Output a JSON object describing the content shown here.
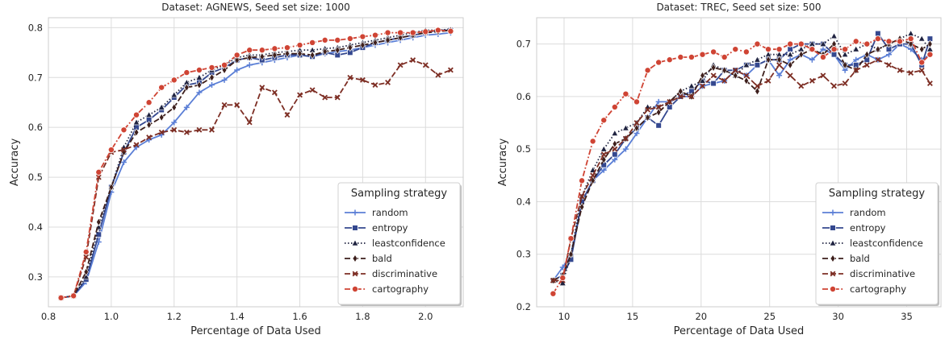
{
  "chart_data": [
    {
      "type": "line",
      "title": "Dataset: AGNEWS, Seed set size: 1000",
      "xlabel": "Percentage of Data Used",
      "ylabel": "Accuracy",
      "xlim": [
        0.8,
        2.12
      ],
      "ylim": [
        0.24,
        0.82
      ],
      "xticks": [
        0.8,
        1.0,
        1.2,
        1.4,
        1.6,
        1.8,
        2.0
      ],
      "xtick_labels": [
        "0.8",
        "1.0",
        "1.2",
        "1.4",
        "1.6",
        "1.8",
        "2.0"
      ],
      "yticks": [
        0.3,
        0.4,
        0.5,
        0.6,
        0.7,
        0.8
      ],
      "ytick_labels": [
        "0.3",
        "0.4",
        "0.5",
        "0.6",
        "0.7",
        "0.8"
      ],
      "grid": true,
      "legend": {
        "title": "Sampling strategy",
        "position": "bottom-right"
      },
      "series": [
        {
          "name": "random",
          "color": "#5b7fd6",
          "dash": "solid",
          "marker": "plus",
          "x": [
            0.84,
            0.88,
            0.92,
            0.96,
            1.0,
            1.04,
            1.08,
            1.12,
            1.16,
            1.2,
            1.24,
            1.28,
            1.32,
            1.36,
            1.4,
            1.44,
            1.48,
            1.52,
            1.56,
            1.6,
            1.64,
            1.68,
            1.72,
            1.76,
            1.8,
            1.84,
            1.88,
            1.92,
            1.96,
            2.0,
            2.04,
            2.08
          ],
          "y": [
            0.258,
            0.262,
            0.29,
            0.37,
            0.47,
            0.53,
            0.56,
            0.575,
            0.585,
            0.61,
            0.64,
            0.67,
            0.685,
            0.695,
            0.715,
            0.725,
            0.73,
            0.735,
            0.74,
            0.745,
            0.742,
            0.748,
            0.752,
            0.755,
            0.76,
            0.765,
            0.77,
            0.775,
            0.78,
            0.785,
            0.787,
            0.79
          ]
        },
        {
          "name": "entropy",
          "color": "#34488f",
          "dash": "solid",
          "marker": "square",
          "x": [
            0.84,
            0.88,
            0.92,
            0.96,
            1.0,
            1.04,
            1.08,
            1.12,
            1.16,
            1.2,
            1.24,
            1.28,
            1.32,
            1.36,
            1.4,
            1.44,
            1.48,
            1.52,
            1.56,
            1.6,
            1.64,
            1.68,
            1.72,
            1.76,
            1.8,
            1.84,
            1.88,
            1.92,
            1.96,
            2.0,
            2.04,
            2.08
          ],
          "y": [
            0.258,
            0.262,
            0.295,
            0.385,
            0.48,
            0.55,
            0.6,
            0.615,
            0.635,
            0.66,
            0.685,
            0.69,
            0.71,
            0.72,
            0.735,
            0.74,
            0.735,
            0.74,
            0.745,
            0.745,
            0.742,
            0.75,
            0.745,
            0.75,
            0.76,
            0.77,
            0.775,
            0.78,
            0.785,
            0.79,
            0.795,
            0.795
          ]
        },
        {
          "name": "leastconfidence",
          "color": "#1f2340",
          "dash": "dot",
          "marker": "triangle",
          "x": [
            0.84,
            0.88,
            0.92,
            0.96,
            1.0,
            1.04,
            1.08,
            1.12,
            1.16,
            1.2,
            1.24,
            1.28,
            1.32,
            1.36,
            1.4,
            1.44,
            1.48,
            1.52,
            1.56,
            1.6,
            1.64,
            1.68,
            1.72,
            1.76,
            1.8,
            1.84,
            1.88,
            1.92,
            1.96,
            2.0,
            2.04,
            2.08
          ],
          "y": [
            0.258,
            0.262,
            0.3,
            0.4,
            0.48,
            0.56,
            0.61,
            0.625,
            0.64,
            0.665,
            0.69,
            0.7,
            0.715,
            0.725,
            0.74,
            0.745,
            0.745,
            0.75,
            0.752,
            0.755,
            0.755,
            0.758,
            0.76,
            0.765,
            0.77,
            0.775,
            0.78,
            0.785,
            0.79,
            0.795,
            0.795,
            0.797
          ]
        },
        {
          "name": "bald",
          "color": "#3d1f1c",
          "dash": "dash",
          "marker": "diamond",
          "x": [
            0.84,
            0.88,
            0.92,
            0.96,
            1.0,
            1.04,
            1.08,
            1.12,
            1.16,
            1.2,
            1.24,
            1.28,
            1.32,
            1.36,
            1.4,
            1.44,
            1.48,
            1.52,
            1.56,
            1.6,
            1.64,
            1.68,
            1.72,
            1.76,
            1.8,
            1.84,
            1.88,
            1.92,
            1.96,
            2.0,
            2.04,
            2.08
          ],
          "y": [
            0.258,
            0.262,
            0.31,
            0.41,
            0.48,
            0.55,
            0.59,
            0.605,
            0.62,
            0.64,
            0.68,
            0.685,
            0.7,
            0.715,
            0.735,
            0.74,
            0.742,
            0.745,
            0.748,
            0.748,
            0.745,
            0.752,
            0.755,
            0.76,
            0.765,
            0.77,
            0.775,
            0.78,
            0.785,
            0.79,
            0.792,
            0.795
          ]
        },
        {
          "name": "discriminative",
          "color": "#7d2e24",
          "dash": "dash",
          "marker": "x",
          "x": [
            0.84,
            0.88,
            0.92,
            0.96,
            1.0,
            1.04,
            1.08,
            1.12,
            1.16,
            1.2,
            1.24,
            1.28,
            1.32,
            1.36,
            1.4,
            1.44,
            1.48,
            1.52,
            1.56,
            1.6,
            1.64,
            1.68,
            1.72,
            1.76,
            1.8,
            1.84,
            1.88,
            1.92,
            1.96,
            2.0,
            2.04,
            2.08
          ],
          "y": [
            0.258,
            0.262,
            0.34,
            0.5,
            0.55,
            0.555,
            0.565,
            0.58,
            0.59,
            0.595,
            0.59,
            0.595,
            0.595,
            0.645,
            0.645,
            0.61,
            0.68,
            0.67,
            0.625,
            0.665,
            0.675,
            0.66,
            0.66,
            0.7,
            0.695,
            0.685,
            0.69,
            0.725,
            0.735,
            0.725,
            0.705,
            0.715
          ]
        },
        {
          "name": "cartography",
          "color": "#cf4434",
          "dash": "dashdot",
          "marker": "circle",
          "x": [
            0.84,
            0.88,
            0.92,
            0.96,
            1.0,
            1.04,
            1.08,
            1.12,
            1.16,
            1.2,
            1.24,
            1.28,
            1.32,
            1.36,
            1.4,
            1.44,
            1.48,
            1.52,
            1.56,
            1.6,
            1.64,
            1.68,
            1.72,
            1.76,
            1.8,
            1.84,
            1.88,
            1.92,
            1.96,
            2.0,
            2.04,
            2.08
          ],
          "y": [
            0.258,
            0.262,
            0.35,
            0.51,
            0.555,
            0.595,
            0.625,
            0.65,
            0.68,
            0.695,
            0.71,
            0.715,
            0.72,
            0.725,
            0.745,
            0.755,
            0.755,
            0.758,
            0.76,
            0.765,
            0.77,
            0.775,
            0.775,
            0.778,
            0.782,
            0.785,
            0.79,
            0.79,
            0.79,
            0.792,
            0.795,
            0.793
          ]
        }
      ]
    },
    {
      "type": "line",
      "title": "Dataset: TREC, Seed set size: 500",
      "xlabel": "Percentage of Data Used",
      "ylabel": "Accuracy",
      "xlim": [
        8.0,
        37.5
      ],
      "ylim": [
        0.2,
        0.75
      ],
      "xticks": [
        10,
        15,
        20,
        25,
        30,
        35
      ],
      "xtick_labels": [
        "10",
        "15",
        "20",
        "25",
        "30",
        "35"
      ],
      "yticks": [
        0.2,
        0.3,
        0.4,
        0.5,
        0.6,
        0.7
      ],
      "ytick_labels": [
        "0.2",
        "0.3",
        "0.4",
        "0.5",
        "0.6",
        "0.7"
      ],
      "grid": true,
      "legend": {
        "title": "Sampling strategy",
        "position": "bottom-right"
      },
      "series": [
        {
          "name": "random",
          "color": "#5b7fd6",
          "dash": "solid",
          "marker": "plus",
          "x": [
            9.2,
            9.9,
            10.5,
            11.3,
            12.1,
            12.9,
            13.7,
            14.5,
            15.3,
            16.1,
            16.9,
            17.7,
            18.5,
            19.3,
            20.1,
            20.9,
            21.7,
            22.5,
            23.3,
            24.1,
            24.9,
            25.7,
            26.5,
            27.3,
            28.1,
            28.9,
            29.7,
            30.5,
            31.3,
            32.1,
            32.9,
            33.7,
            34.5,
            35.3,
            36.1,
            36.7
          ],
          "y": [
            0.25,
            0.275,
            0.3,
            0.4,
            0.44,
            0.46,
            0.48,
            0.5,
            0.53,
            0.56,
            0.59,
            0.59,
            0.6,
            0.6,
            0.62,
            0.625,
            0.63,
            0.65,
            0.64,
            0.66,
            0.67,
            0.64,
            0.67,
            0.68,
            0.67,
            0.69,
            0.68,
            0.65,
            0.67,
            0.68,
            0.67,
            0.68,
            0.7,
            0.69,
            0.67,
            0.68
          ]
        },
        {
          "name": "entropy",
          "color": "#34488f",
          "dash": "solid",
          "marker": "square",
          "x": [
            9.2,
            9.9,
            10.5,
            11.3,
            12.1,
            12.9,
            13.7,
            14.5,
            15.3,
            16.1,
            16.9,
            17.7,
            18.5,
            19.3,
            20.1,
            20.9,
            21.7,
            22.5,
            23.3,
            24.1,
            24.9,
            25.7,
            26.5,
            27.3,
            28.1,
            28.9,
            29.7,
            30.5,
            31.3,
            32.1,
            32.9,
            33.7,
            34.5,
            35.3,
            36.1,
            36.7
          ],
          "y": [
            0.25,
            0.26,
            0.29,
            0.4,
            0.44,
            0.47,
            0.49,
            0.52,
            0.54,
            0.56,
            0.545,
            0.58,
            0.6,
            0.61,
            0.63,
            0.625,
            0.65,
            0.65,
            0.66,
            0.66,
            0.67,
            0.67,
            0.69,
            0.7,
            0.7,
            0.7,
            0.68,
            0.66,
            0.66,
            0.67,
            0.72,
            0.69,
            0.7,
            0.7,
            0.66,
            0.71
          ]
        },
        {
          "name": "leastconfidence",
          "color": "#1f2340",
          "dash": "dot",
          "marker": "triangle",
          "x": [
            9.2,
            9.9,
            10.5,
            11.3,
            12.1,
            12.9,
            13.7,
            14.5,
            15.3,
            16.1,
            16.9,
            17.7,
            18.5,
            19.3,
            20.1,
            20.9,
            21.7,
            22.5,
            23.3,
            24.1,
            24.9,
            25.7,
            26.5,
            27.3,
            28.1,
            28.9,
            29.7,
            30.5,
            31.3,
            32.1,
            32.9,
            33.7,
            34.5,
            35.3,
            36.1,
            36.7
          ],
          "y": [
            0.25,
            0.245,
            0.3,
            0.41,
            0.46,
            0.5,
            0.53,
            0.54,
            0.55,
            0.58,
            0.58,
            0.59,
            0.61,
            0.62,
            0.63,
            0.66,
            0.65,
            0.64,
            0.66,
            0.67,
            0.68,
            0.68,
            0.68,
            0.69,
            0.7,
            0.7,
            0.715,
            0.68,
            0.69,
            0.7,
            0.69,
            0.7,
            0.71,
            0.72,
            0.71,
            0.69
          ]
        },
        {
          "name": "bald",
          "color": "#3d1f1c",
          "dash": "dash",
          "marker": "diamond",
          "x": [
            9.2,
            9.9,
            10.5,
            11.3,
            12.1,
            12.9,
            13.7,
            14.5,
            15.3,
            16.1,
            16.9,
            17.7,
            18.5,
            19.3,
            20.1,
            20.9,
            21.7,
            22.5,
            23.3,
            24.1,
            24.9,
            25.7,
            26.5,
            27.3,
            28.1,
            28.9,
            29.7,
            30.5,
            31.3,
            32.1,
            32.9,
            33.7,
            34.5,
            35.3,
            36.1,
            36.7
          ],
          "y": [
            0.25,
            0.26,
            0.3,
            0.39,
            0.44,
            0.48,
            0.51,
            0.52,
            0.54,
            0.56,
            0.57,
            0.59,
            0.61,
            0.6,
            0.64,
            0.655,
            0.65,
            0.64,
            0.63,
            0.61,
            0.67,
            0.67,
            0.66,
            0.68,
            0.69,
            0.68,
            0.7,
            0.66,
            0.65,
            0.68,
            0.69,
            0.7,
            0.71,
            0.7,
            0.69,
            0.7
          ]
        },
        {
          "name": "discriminative",
          "color": "#7d2e24",
          "dash": "dash",
          "marker": "x",
          "x": [
            9.2,
            9.9,
            10.5,
            11.3,
            12.1,
            12.9,
            13.7,
            14.5,
            15.3,
            16.1,
            16.9,
            17.7,
            18.5,
            19.3,
            20.1,
            20.9,
            21.7,
            22.5,
            23.3,
            24.1,
            24.9,
            25.7,
            26.5,
            27.3,
            28.1,
            28.9,
            29.7,
            30.5,
            31.3,
            32.1,
            32.9,
            33.7,
            34.5,
            35.3,
            36.1,
            36.7
          ],
          "y": [
            0.25,
            0.25,
            0.33,
            0.41,
            0.45,
            0.49,
            0.5,
            0.52,
            0.55,
            0.575,
            0.58,
            0.59,
            0.6,
            0.6,
            0.62,
            0.64,
            0.63,
            0.65,
            0.64,
            0.62,
            0.63,
            0.66,
            0.64,
            0.62,
            0.63,
            0.64,
            0.62,
            0.625,
            0.65,
            0.66,
            0.67,
            0.66,
            0.65,
            0.645,
            0.65,
            0.625
          ]
        },
        {
          "name": "cartography",
          "color": "#cf4434",
          "dash": "dashdot",
          "marker": "circle",
          "x": [
            9.2,
            9.9,
            10.5,
            11.3,
            12.1,
            12.9,
            13.7,
            14.5,
            15.3,
            16.1,
            16.9,
            17.7,
            18.5,
            19.3,
            20.1,
            20.9,
            21.7,
            22.5,
            23.3,
            24.1,
            24.9,
            25.7,
            26.5,
            27.3,
            28.1,
            28.9,
            29.7,
            30.5,
            31.3,
            32.1,
            32.9,
            33.7,
            34.5,
            35.3,
            36.1,
            36.7
          ],
          "y": [
            0.225,
            0.255,
            0.33,
            0.44,
            0.515,
            0.555,
            0.58,
            0.605,
            0.59,
            0.65,
            0.665,
            0.67,
            0.675,
            0.675,
            0.68,
            0.685,
            0.675,
            0.69,
            0.685,
            0.7,
            0.69,
            0.69,
            0.7,
            0.7,
            0.69,
            0.675,
            0.69,
            0.69,
            0.705,
            0.7,
            0.71,
            0.705,
            0.705,
            0.71,
            0.665,
            0.68
          ]
        }
      ]
    }
  ]
}
